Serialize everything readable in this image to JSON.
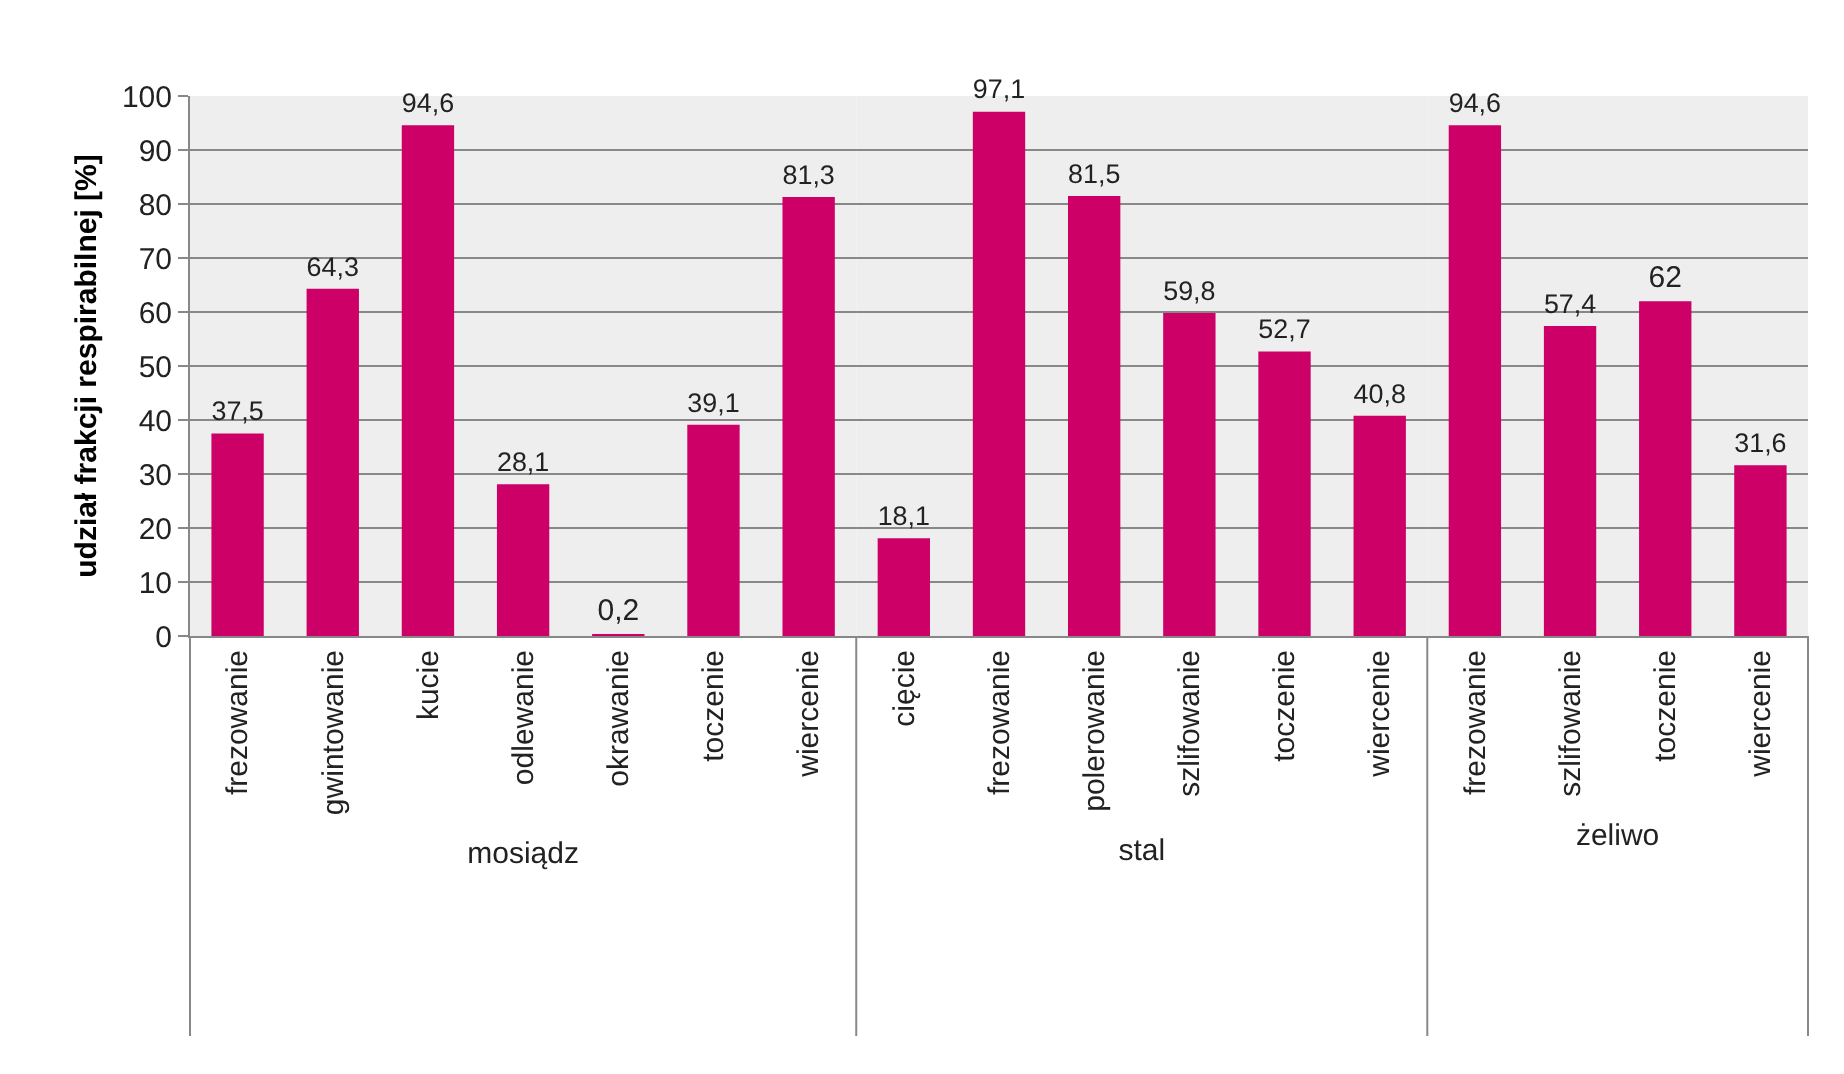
{
  "chart_data": [
    {
      "type": "bar",
      "xlabel": "mosiądz",
      "ylabel": "udział frakcji respirabilnej [%]",
      "categories": [
        "frezowanie",
        "gwintowanie",
        "kucie",
        "odlewanie",
        "okrawanie",
        "toczenie",
        "wiercenie"
      ],
      "values": [
        37.5,
        64.3,
        94.6,
        28.1,
        0.2,
        39.1,
        81.3
      ],
      "value_labels": [
        "37,5",
        "64,3",
        "94,6",
        "28,1",
        "0,2",
        "39,1",
        "81,3"
      ],
      "color": "#cc0066",
      "ylim": [
        0,
        100
      ],
      "yticks": [
        0,
        10,
        20,
        30,
        40,
        50,
        60,
        70,
        80,
        90,
        100
      ],
      "grid": "y"
    },
    {
      "type": "bar",
      "xlabel": "stal",
      "categories": [
        "cięcie",
        "frezowanie",
        "polerowanie",
        "szlifowanie",
        "toczenie",
        "wiercenie"
      ],
      "values": [
        18.1,
        97.1,
        81.5,
        59.8,
        52.7,
        40.8
      ],
      "value_labels": [
        "18,1",
        "97,1",
        "81,5",
        "59,8",
        "52,7",
        "40,8"
      ],
      "color": "#cc0066",
      "ylim": [
        0,
        100
      ],
      "yticks": [
        0,
        10,
        20,
        30,
        40,
        50,
        60,
        70,
        80,
        90,
        100
      ],
      "grid": "y",
      "tick_labels": "x"
    },
    {
      "type": "bar",
      "xlabel": "żeliwo",
      "categories": [
        "frezowanie",
        "szlifowanie",
        "toczenie",
        "wiercenie"
      ],
      "values": [
        94.6,
        57.4,
        62,
        31.6
      ],
      "value_labels": [
        "94,6",
        "57,4",
        "62",
        "31,6"
      ],
      "color": "#cc0066",
      "ylim": [
        0,
        100
      ],
      "yticks": [
        0,
        10,
        20,
        30,
        40,
        50,
        60,
        70,
        80,
        90,
        100
      ],
      "grid": "y",
      "tick_labels": "x"
    }
  ]
}
